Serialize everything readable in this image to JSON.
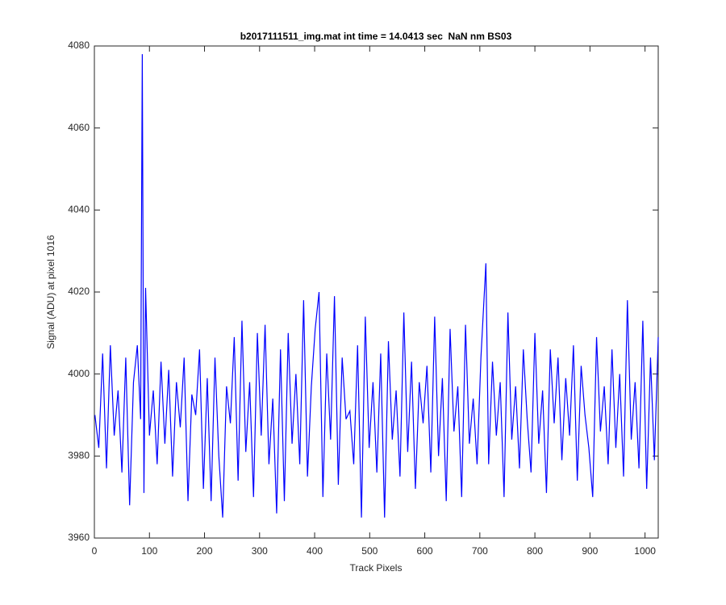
{
  "chart_data": {
    "type": "line",
    "title": "b2017111511_img.mat int time = 14.0413 sec  NaN nm BS03",
    "xlabel": "Track Pixels",
    "ylabel": "Signal (ADU) at pixel 1016",
    "color": "#0000ff",
    "xlim": [
      0,
      1024
    ],
    "ylim": [
      3960,
      4080
    ],
    "xticks": [
      0,
      100,
      200,
      300,
      400,
      500,
      600,
      700,
      800,
      900,
      1000
    ],
    "yticks": [
      3960,
      3980,
      4000,
      4020,
      4040,
      4060,
      4080
    ],
    "grid": false,
    "x": [
      1,
      8,
      15,
      22,
      29,
      36,
      43,
      50,
      57,
      64,
      71,
      78,
      84,
      87,
      90,
      93,
      100,
      107,
      114,
      121,
      128,
      135,
      142,
      149,
      156,
      163,
      170,
      177,
      184,
      191,
      198,
      205,
      212,
      219,
      226,
      233,
      240,
      247,
      254,
      261,
      268,
      275,
      282,
      289,
      296,
      303,
      310,
      317,
      324,
      331,
      338,
      345,
      352,
      359,
      366,
      373,
      380,
      387,
      394,
      401,
      408,
      415,
      422,
      429,
      436,
      443,
      450,
      457,
      464,
      471,
      478,
      485,
      492,
      499,
      506,
      513,
      520,
      527,
      534,
      541,
      548,
      555,
      562,
      569,
      576,
      583,
      590,
      597,
      604,
      611,
      618,
      625,
      632,
      639,
      646,
      653,
      660,
      667,
      674,
      681,
      688,
      695,
      702,
      711,
      716,
      723,
      730,
      737,
      744,
      751,
      758,
      765,
      772,
      779,
      786,
      793,
      800,
      807,
      814,
      821,
      828,
      835,
      842,
      849,
      856,
      863,
      870,
      877,
      884,
      891,
      898,
      905,
      912,
      919,
      926,
      933,
      940,
      947,
      954,
      961,
      968,
      975,
      982,
      989,
      996,
      1003,
      1010,
      1017,
      1024
    ],
    "values": [
      3990,
      3982,
      4005,
      3977,
      4007,
      3985,
      3996,
      3976,
      4004,
      3968,
      3998,
      4007,
      3989,
      4078,
      3971,
      4021,
      3985,
      3996,
      3978,
      4003,
      3983,
      4001,
      3975,
      3998,
      3987,
      4004,
      3969,
      3995,
      3990,
      4006,
      3972,
      3999,
      3969,
      4004,
      3980,
      3965,
      3997,
      3988,
      4009,
      3974,
      4013,
      3981,
      3998,
      3970,
      4010,
      3985,
      4012,
      3978,
      3994,
      3966,
      4006,
      3969,
      4010,
      3983,
      4000,
      3978,
      4018,
      3975,
      3997,
      4011,
      4020,
      3970,
      4005,
      3984,
      4019,
      3973,
      4004,
      3989,
      3991,
      3978,
      4007,
      3965,
      4014,
      3982,
      3998,
      3976,
      4005,
      3965,
      4008,
      3984,
      3996,
      3975,
      4015,
      3981,
      4003,
      3972,
      3998,
      3988,
      4002,
      3976,
      4014,
      3980,
      3999,
      3969,
      4011,
      3986,
      3997,
      3970,
      4012,
      3983,
      3994,
      3978,
      4004,
      4027,
      3978,
      4003,
      3985,
      3998,
      3970,
      4015,
      3984,
      3997,
      3977,
      4006,
      3989,
      3976,
      4010,
      3983,
      3996,
      3971,
      4006,
      3988,
      4004,
      3979,
      3999,
      3985,
      4007,
      3974,
      4002,
      3990,
      3982,
      3970,
      4009,
      3986,
      3997,
      3978,
      4006,
      3982,
      4000,
      3975,
      4018,
      3984,
      3998,
      3977,
      4013,
      3972,
      4004,
      3979,
      4009
    ]
  }
}
